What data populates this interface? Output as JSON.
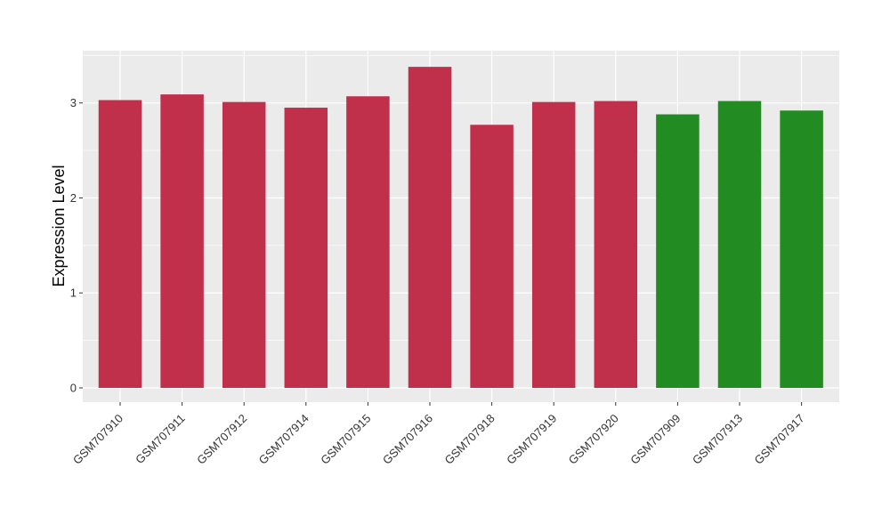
{
  "chart_data": {
    "type": "bar",
    "title": "",
    "xlabel": "",
    "ylabel": "Expression Level",
    "ylim": [
      -0.15,
      3.55
    ],
    "yticks": [
      0,
      1,
      2,
      3
    ],
    "grid": true,
    "categories": [
      "GSM707910",
      "GSM707911",
      "GSM707912",
      "GSM707914",
      "GSM707915",
      "GSM707916",
      "GSM707918",
      "GSM707919",
      "GSM707920",
      "GSM707909",
      "GSM707913",
      "GSM707917"
    ],
    "values": [
      3.03,
      3.09,
      3.01,
      2.95,
      3.07,
      3.38,
      2.77,
      3.01,
      3.02,
      2.88,
      3.02,
      2.92
    ],
    "bar_colors": [
      "#c0304a",
      "#c0304a",
      "#c0304a",
      "#c0304a",
      "#c0304a",
      "#c0304a",
      "#c0304a",
      "#c0304a",
      "#c0304a",
      "#228b22",
      "#228b22",
      "#228b22"
    ],
    "panel_background": "#ebebeb",
    "grid_color": "#ffffff"
  }
}
